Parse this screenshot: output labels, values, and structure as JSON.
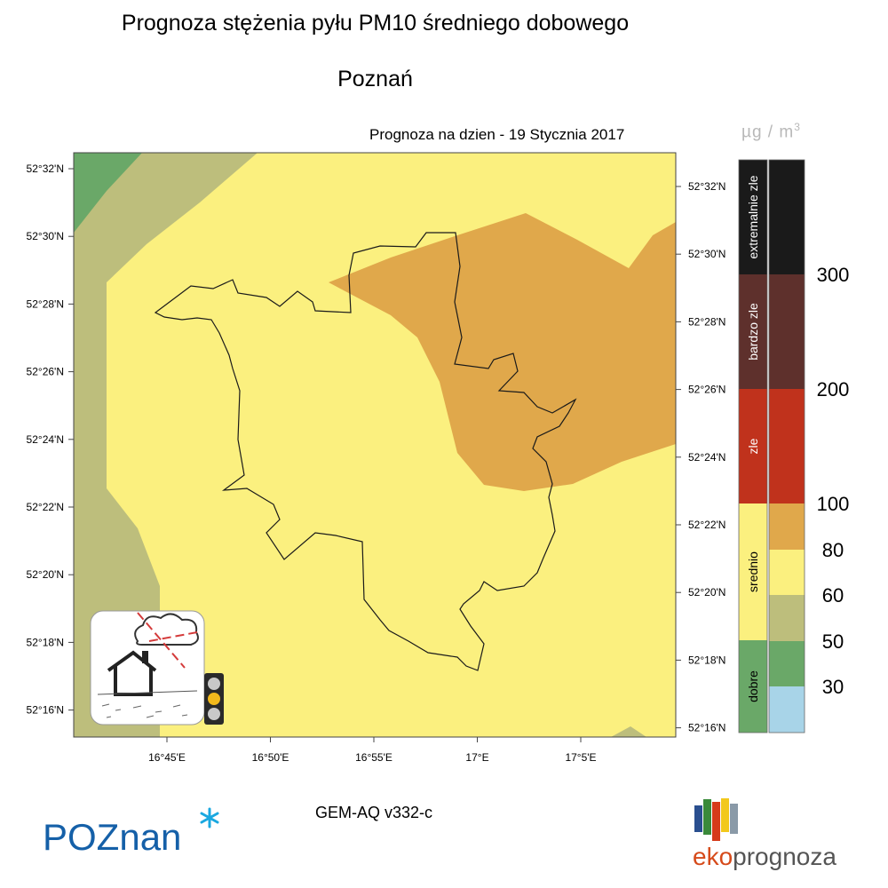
{
  "header": {
    "title": "Prognoza stężenia pyłu PM10 średniego dobowego",
    "city": "Poznań",
    "date_line": "Prognoza na dzien -  19 Stycznia 2017"
  },
  "legend": {
    "unit_mu": "µg / m",
    "unit_exp": "3",
    "categories": [
      {
        "label": "extremalnie zle",
        "color": "#1a1a1a"
      },
      {
        "label": "bardzo zle",
        "color": "#5e302c"
      },
      {
        "label": "zle",
        "color": "#c0321c"
      },
      {
        "label": "srednio",
        "color": "#fbf07f"
      },
      {
        "label": "dobre",
        "color": "#6aa868"
      }
    ],
    "scale_colors": [
      "#1a1a1a",
      "#5e302c",
      "#c0321c",
      "#e0a84b",
      "#fbf07f",
      "#bdbe7c",
      "#6aa868",
      "#a8d4e8"
    ],
    "scale_labels": [
      "300",
      "200",
      "100",
      "80",
      "60",
      "50",
      "30"
    ]
  },
  "map": {
    "lat_labels_left": [
      "52°32'N",
      "52°30'N",
      "52°28'N",
      "52°26'N",
      "52°24'N",
      "52°22'N",
      "52°20'N",
      "52°18'N",
      "52°16'N"
    ],
    "lat_labels_right": [
      "52°32'N",
      "52°30'N",
      "52°28'N",
      "52°26'N",
      "52°24'N",
      "52°22'N",
      "52°20'N",
      "52°18'N",
      "52°16'N"
    ],
    "lon_labels": [
      "16°45'E",
      "16°50'E",
      "16°55'E",
      "17°E",
      "17°5'E"
    ],
    "colors": {
      "good": "#6aa868",
      "moderate_low": "#bdbe7c",
      "moderate": "#fbf07f",
      "moderate_high": "#e0a84b"
    }
  },
  "model": "GEM-AQ v332-c",
  "logos": {
    "poznan": "POZnan",
    "eko_a": "eko",
    "eko_b": "prognoza"
  }
}
